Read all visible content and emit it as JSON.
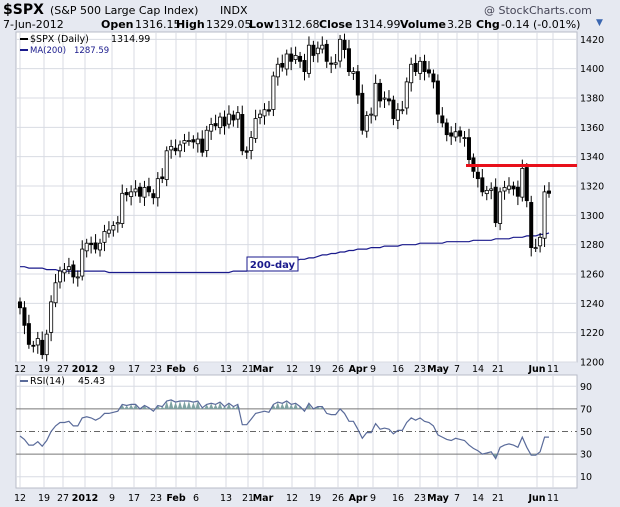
{
  "header": {
    "symbol": "$SPX",
    "name": "(S&P 500 Large Cap Index)",
    "exchange": "INDX",
    "copyright": "@ StockCharts.com",
    "date": "7-Jun-2012",
    "open_label": "Open",
    "open": "1316.15",
    "high_label": "High",
    "high": "1329.05",
    "low_label": "Low",
    "low": "1312.68",
    "close_label": "Close",
    "close": "1314.99",
    "volume_label": "Volume",
    "volume": "3.2B",
    "chg_label": "Chg",
    "chg": "-0.14 (-0.01%)"
  },
  "legend": {
    "price_label": "$SPX (Daily)",
    "price_value": "1314.99",
    "ma_label": "MA(200)",
    "ma_value": "1287.59",
    "rsi_label": "RSI(14)",
    "rsi_value": "45.43"
  },
  "annotation": {
    "ma_callout": "200-day"
  },
  "colors": {
    "background": "#e6e9f1",
    "plot": "#ffffff",
    "candle": "#000000",
    "ma": "#1a1a8c",
    "resistance": "#e8101a",
    "rsi_line": "#5a6b9a",
    "rsi_fill": "#7fa3a3",
    "grid": "#d8dbe3"
  },
  "chart_data": [
    {
      "type": "candlestick",
      "series": "$SPX (Daily)",
      "ylim": [
        1200,
        1425
      ],
      "yticks": [
        1200,
        1220,
        1240,
        1260,
        1280,
        1300,
        1320,
        1340,
        1360,
        1380,
        1400,
        1420
      ],
      "date_range": [
        "2011-12-12",
        "2012-06-07"
      ],
      "x_labels": [
        "12",
        "19",
        "27",
        "2012",
        "9",
        "17",
        "23",
        "Feb",
        "6",
        "13",
        "21",
        "Mar",
        "12",
        "19",
        "26",
        "Apr",
        "9",
        "16",
        "23",
        "May",
        "7",
        "14",
        "21",
        "Jun",
        "11"
      ],
      "close": [
        1237,
        1225,
        1212,
        1211,
        1216,
        1205,
        1219,
        1241,
        1254,
        1262,
        1263,
        1265,
        1258,
        1258,
        1277,
        1281,
        1280,
        1277,
        1281,
        1289,
        1290,
        1293,
        1295,
        1315,
        1314,
        1316,
        1318,
        1313,
        1319,
        1316,
        1312,
        1325,
        1325,
        1344,
        1347,
        1344,
        1348,
        1351,
        1351,
        1350,
        1352,
        1343,
        1358,
        1362,
        1361,
        1367,
        1361,
        1369,
        1365,
        1370,
        1344,
        1343,
        1353,
        1366,
        1369,
        1372,
        1371,
        1395,
        1403,
        1401,
        1410,
        1405,
        1409,
        1405,
        1398,
        1416,
        1409,
        1414,
        1416,
        1405,
        1403,
        1404,
        1420,
        1413,
        1398,
        1398,
        1382,
        1358,
        1368,
        1369,
        1390,
        1378,
        1380,
        1378,
        1366,
        1372,
        1372,
        1391,
        1403,
        1398,
        1405,
        1398,
        1397,
        1391,
        1369,
        1363,
        1355,
        1354,
        1357,
        1354,
        1353,
        1338,
        1330,
        1325,
        1316,
        1317,
        1318,
        1295,
        1316,
        1319,
        1320,
        1318,
        1313,
        1332,
        1310,
        1278,
        1278,
        1285,
        1316,
        1315
      ],
      "ma200": [
        1265,
        1265,
        1264,
        1264,
        1264,
        1264,
        1263,
        1263,
        1263,
        1262,
        1262,
        1262,
        1262,
        1262,
        1262,
        1262,
        1262,
        1262,
        1262,
        1262,
        1261,
        1261,
        1261,
        1261,
        1261,
        1261,
        1261,
        1261,
        1261,
        1261,
        1261,
        1261,
        1261,
        1261,
        1261,
        1261,
        1261,
        1261,
        1261,
        1261,
        1261,
        1261,
        1261,
        1261,
        1261,
        1261,
        1261,
        1261,
        1262,
        1262,
        1262,
        1262,
        1263,
        1263,
        1264,
        1264,
        1265,
        1266,
        1266,
        1267,
        1268,
        1268,
        1269,
        1270,
        1270,
        1271,
        1271,
        1272,
        1273,
        1273,
        1274,
        1274,
        1275,
        1275,
        1276,
        1276,
        1277,
        1277,
        1277,
        1278,
        1278,
        1278,
        1279,
        1279,
        1279,
        1279,
        1280,
        1280,
        1280,
        1280,
        1281,
        1281,
        1281,
        1281,
        1281,
        1281,
        1282,
        1282,
        1282,
        1282,
        1282,
        1282,
        1283,
        1283,
        1283,
        1283,
        1283,
        1284,
        1284,
        1284,
        1284,
        1285,
        1285,
        1285,
        1286,
        1286,
        1286,
        1287,
        1287,
        1288
      ],
      "resistance_level": 1334
    },
    {
      "type": "line",
      "series": "RSI(14)",
      "ylim": [
        0,
        100
      ],
      "yticks": [
        10,
        30,
        50,
        70,
        90
      ],
      "reference_lines": [
        30,
        50,
        70
      ],
      "values": [
        46,
        43,
        38,
        38,
        41,
        37,
        42,
        50,
        55,
        58,
        58,
        59,
        55,
        55,
        62,
        63,
        62,
        60,
        62,
        66,
        66,
        67,
        68,
        74,
        73,
        74,
        74,
        70,
        73,
        71,
        68,
        73,
        72,
        77,
        78,
        76,
        77,
        77,
        77,
        76,
        77,
        71,
        74,
        75,
        74,
        76,
        72,
        75,
        72,
        74,
        56,
        56,
        61,
        66,
        67,
        68,
        67,
        74,
        76,
        75,
        77,
        74,
        75,
        72,
        68,
        75,
        70,
        72,
        72,
        66,
        65,
        65,
        70,
        66,
        59,
        59,
        52,
        44,
        49,
        49,
        57,
        52,
        53,
        52,
        48,
        51,
        51,
        58,
        62,
        60,
        62,
        59,
        58,
        55,
        47,
        45,
        43,
        42,
        44,
        43,
        42,
        38,
        35,
        33,
        30,
        31,
        32,
        26,
        36,
        38,
        39,
        38,
        36,
        45,
        36,
        29,
        29,
        32,
        45,
        45
      ]
    }
  ]
}
